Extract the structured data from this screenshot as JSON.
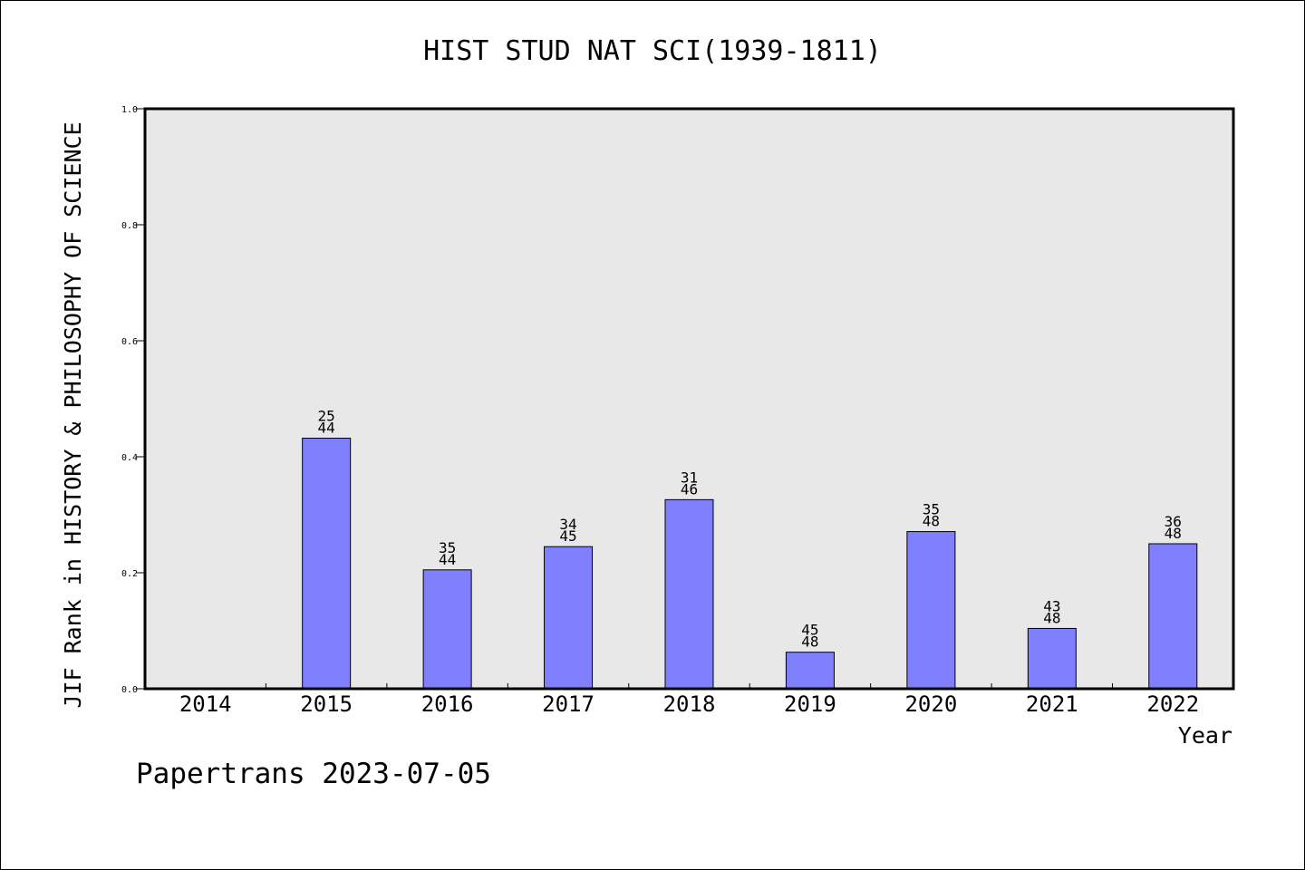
{
  "chart_data": {
    "type": "bar",
    "title": "HIST STUD NAT SCI(1939-1811)",
    "xlabel": "Year",
    "ylabel": "JIF Rank in HISTORY & PHILOSOPHY OF SCIENCE",
    "ylim": [
      0,
      1.0
    ],
    "yticks": [
      "0.0",
      "0.2",
      "0.4",
      "0.6",
      "0.8",
      "1.0"
    ],
    "categories": [
      "2014",
      "2015",
      "2016",
      "2017",
      "2018",
      "2019",
      "2020",
      "2021",
      "2022"
    ],
    "values": [
      null,
      0.432,
      0.205,
      0.245,
      0.326,
      0.063,
      0.271,
      0.104,
      0.25
    ],
    "ranks": [
      null,
      "25",
      "35",
      "34",
      "31",
      "45",
      "35",
      "43",
      "36"
    ],
    "totals": [
      null,
      "44",
      "44",
      "45",
      "46",
      "48",
      "48",
      "48",
      "48"
    ],
    "bar_color": "#8080ff",
    "plot_background": "#e8e8e8",
    "grid": false,
    "legend": "none"
  },
  "footer": {
    "credit": "Papertrans 2023-07-05"
  }
}
